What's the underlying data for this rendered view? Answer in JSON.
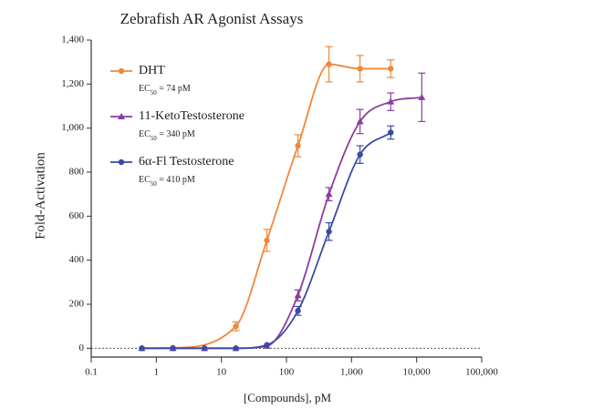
{
  "chart_data": {
    "type": "scatter",
    "title": "Zebrafish AR Agonist Assays",
    "xlabel": "[Compounds], pM",
    "ylabel": "Fold-Activation",
    "log_x": true,
    "xlim": [
      0.1,
      100000
    ],
    "xticks": [
      0.1,
      1,
      10,
      100,
      {
        "value": 1000,
        "label": "1,000"
      },
      {
        "value": 10000,
        "label": "10,000"
      },
      {
        "value": 100000,
        "label": "100,000"
      }
    ],
    "ylim": [
      -40,
      1400
    ],
    "yticks": [
      0,
      200,
      400,
      600,
      800,
      {
        "value": 1000,
        "label": "1,000"
      },
      {
        "value": 1200,
        "label": "1,200"
      },
      {
        "value": 1400,
        "label": "1,400"
      }
    ],
    "series": [
      {
        "name": "DHT",
        "color": "#f0873a",
        "marker": "circle",
        "label_parts": [
          "EC",
          "50",
          " = 74 pM"
        ],
        "x": [
          0.6,
          1.8,
          16.7,
          50,
          150,
          450,
          1350,
          4000
        ],
        "values": [
          0,
          2,
          100,
          490,
          920,
          1290,
          1270,
          1270
        ],
        "errors": [
          null,
          null,
          20,
          50,
          50,
          80,
          60,
          40
        ]
      },
      {
        "name": "11-KetoTestosterone",
        "color": "#8a3da0",
        "marker": "triangle",
        "label_parts": [
          "EC",
          "50",
          " = 340 pM"
        ],
        "x": [
          0.6,
          1.8,
          5.5,
          16.7,
          50,
          150,
          450,
          1350,
          4000,
          12000
        ],
        "values": [
          0,
          0,
          0,
          0,
          10,
          240,
          700,
          1030,
          1120,
          1140
        ],
        "errors": [
          null,
          null,
          null,
          null,
          null,
          25,
          30,
          55,
          40,
          110
        ]
      },
      {
        "name": "6α-Fl Testosterone",
        "color": "#3a4aa6",
        "marker": "circle",
        "label_parts": [
          "EC",
          "50",
          " = 410 pM"
        ],
        "x": [
          0.6,
          1.8,
          5.5,
          16.7,
          50,
          150,
          450,
          1350,
          4000
        ],
        "values": [
          0,
          0,
          0,
          0,
          15,
          170,
          530,
          880,
          980
        ],
        "errors": [
          null,
          null,
          null,
          null,
          null,
          20,
          40,
          40,
          30
        ]
      }
    ]
  }
}
